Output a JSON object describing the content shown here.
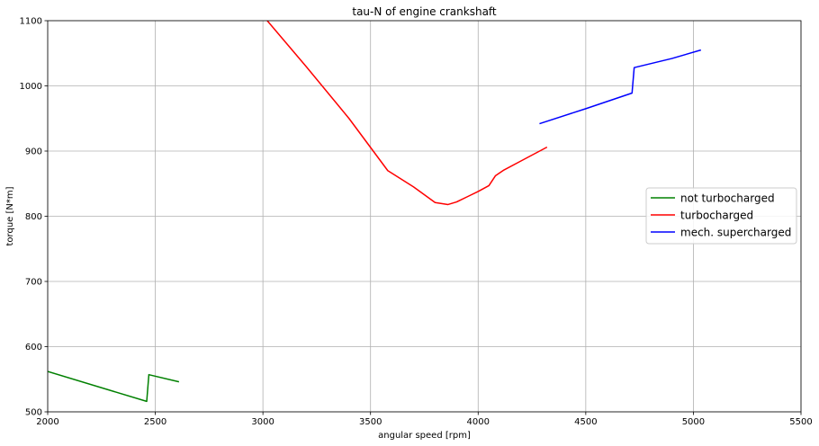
{
  "chart_data": {
    "type": "line",
    "title": "tau-N of engine crankshaft",
    "xlabel": "angular speed [rpm]",
    "ylabel": "torque [N*m]",
    "xlim": [
      2000,
      5500
    ],
    "ylim": [
      500,
      1100
    ],
    "xticks": [
      2000,
      2500,
      3000,
      3500,
      4000,
      4500,
      5000,
      5500
    ],
    "yticks": [
      500,
      600,
      700,
      800,
      900,
      1000,
      1100
    ],
    "grid": true,
    "legend_position": "center-right",
    "series": [
      {
        "name": "not turbocharged",
        "color": "#008000",
        "x": [
          2000,
          2460,
          2470,
          2610
        ],
        "y": [
          562,
          516,
          557,
          546
        ]
      },
      {
        "name": "turbocharged",
        "color": "#ff0000",
        "x": [
          3020,
          3200,
          3400,
          3580,
          3700,
          3800,
          3860,
          3900,
          3950,
          4000,
          4050,
          4080,
          4120,
          4200,
          4320
        ],
        "y": [
          1100,
          1030,
          950,
          870,
          845,
          821,
          818,
          822,
          830,
          838,
          847,
          862,
          871,
          885,
          906
        ]
      },
      {
        "name": "mech. supercharged",
        "color": "#0000ff",
        "x": [
          4285,
          4500,
          4715,
          4725,
          4900,
          5035
        ],
        "y": [
          942,
          965,
          989,
          1028,
          1042,
          1055
        ]
      }
    ]
  }
}
